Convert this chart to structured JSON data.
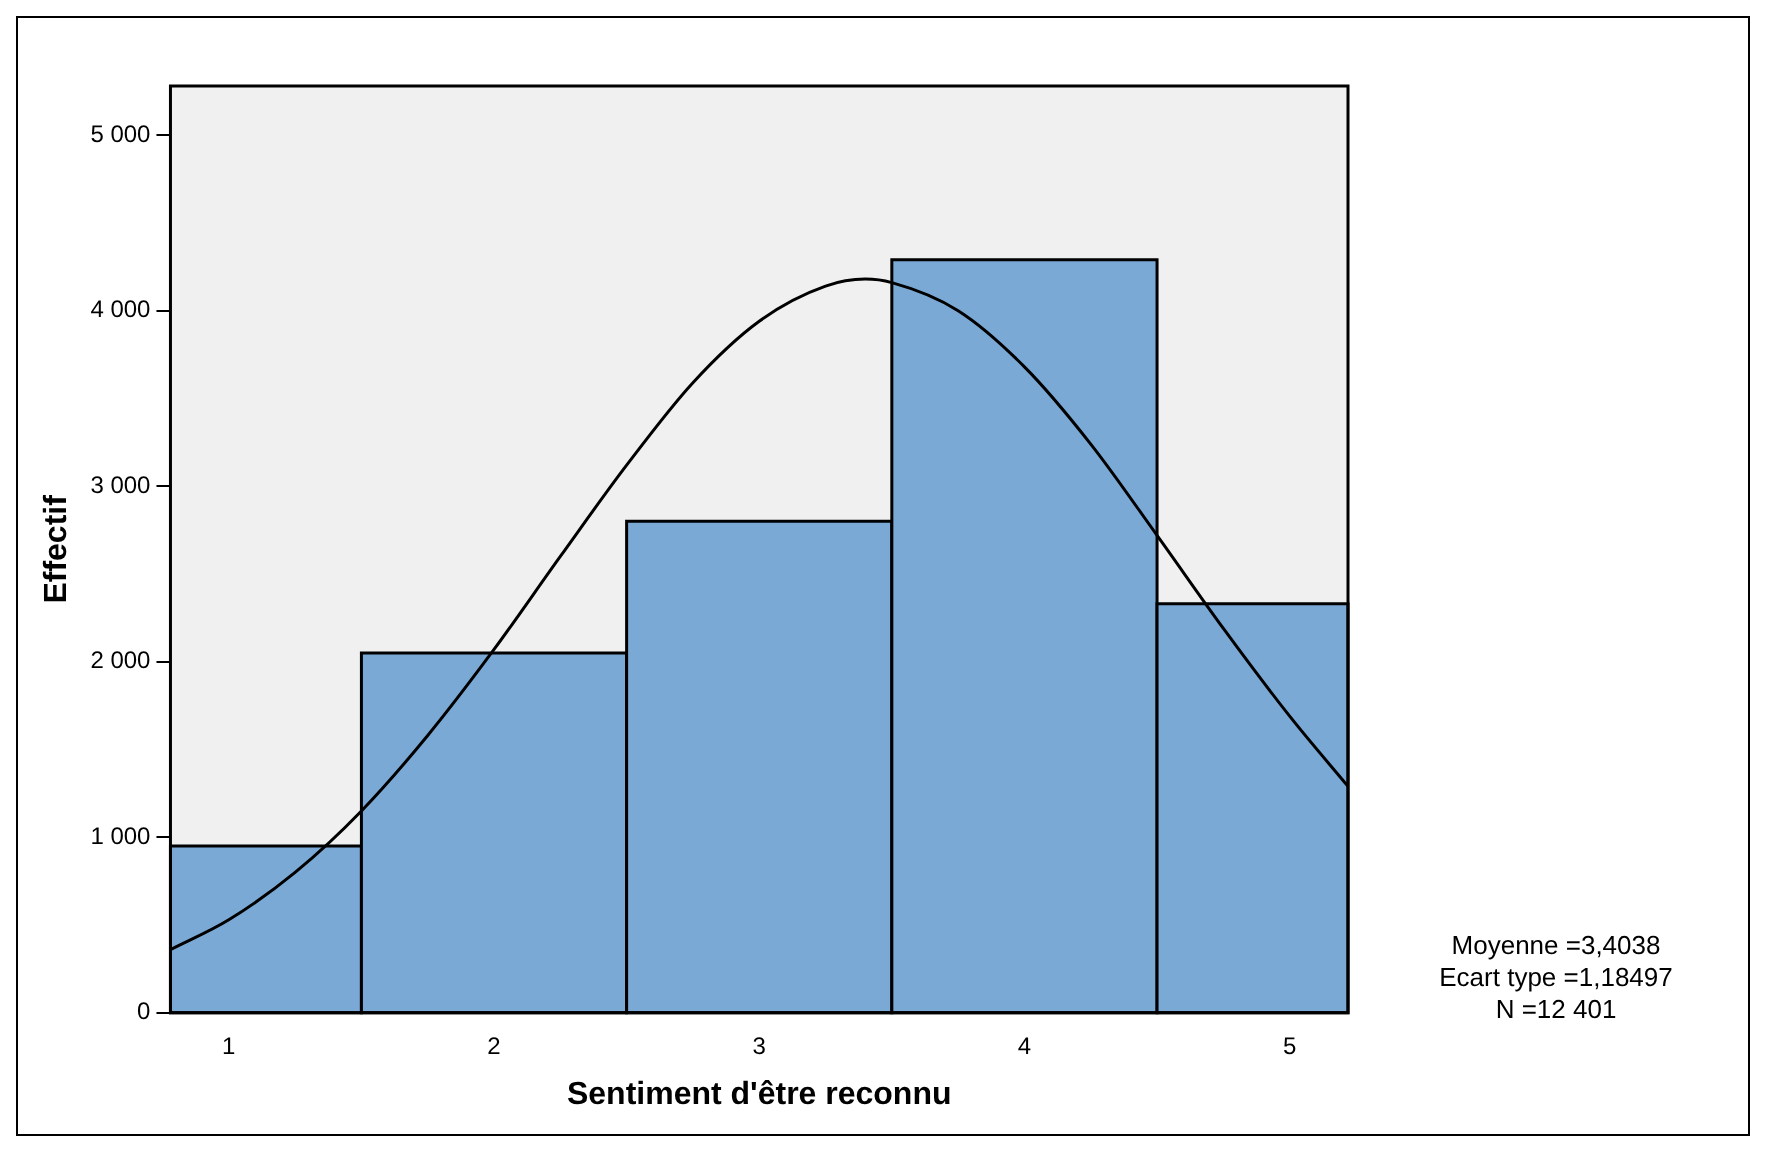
{
  "chart_data": {
    "type": "histogram",
    "xlabel": "Sentiment d'être reconnu",
    "ylabel": "Effectif",
    "bins": [
      0.78,
      1.5,
      2.5,
      3.5,
      4.5,
      5.22
    ],
    "values": [
      950,
      2050,
      2800,
      4290,
      2330
    ],
    "color": "#7ba9d6",
    "series": [
      {
        "type": "line",
        "color": "#000000",
        "x": [
          0.78,
          1,
          1.25,
          1.5,
          1.75,
          2,
          2.25,
          2.5,
          2.75,
          3,
          3.25,
          3.4,
          3.5,
          3.75,
          4,
          4.25,
          4.5,
          4.75,
          5,
          5.22
        ],
        "values": [
          360,
          530,
          800,
          1150,
          1580,
          2070,
          2600,
          3120,
          3590,
          3940,
          4140,
          4180,
          4160,
          4000,
          3680,
          3240,
          2720,
          2190,
          1690,
          1290
        ]
      }
    ],
    "xlim": [
      0.78,
      5.22
    ],
    "xticks": [
      1,
      2,
      3,
      4,
      5
    ],
    "ylim": [
      0,
      5280
    ],
    "yticks": [
      {
        "value": 0,
        "label": "0"
      },
      {
        "value": 1000,
        "label": "1 000"
      },
      {
        "value": 2000,
        "label": "2 000"
      },
      {
        "value": 3000,
        "label": "3 000"
      },
      {
        "value": 4000,
        "label": "4 000"
      },
      {
        "value": 5000,
        "label": "5 000"
      }
    ],
    "grid": false,
    "legend": false,
    "marker": "none",
    "line_style": "solid",
    "annotations": [
      "Moyenne =3,4038",
      "Ecart type =1,18497",
      "N =12 401"
    ]
  }
}
